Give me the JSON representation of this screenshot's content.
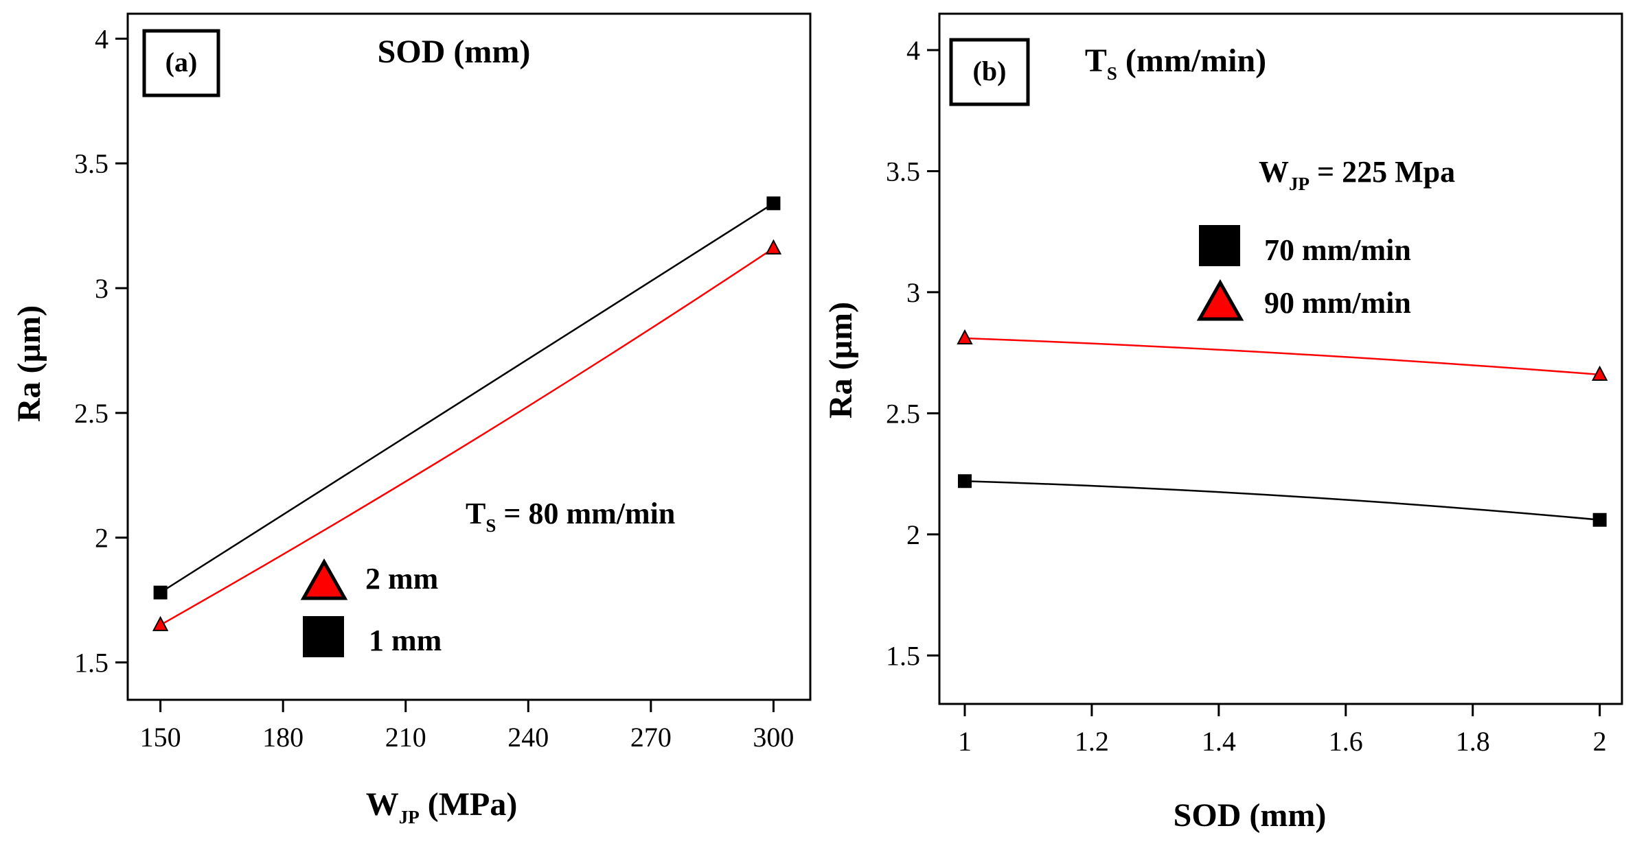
{
  "chart_data": [
    {
      "type": "line",
      "panel_label": "(a)",
      "title": "SOD (mm)",
      "xlabel": {
        "main": "W",
        "sub": "JP",
        "rest": " (MPa)"
      },
      "ylabel": "Ra (µm)",
      "xlim": [
        142,
        309
      ],
      "ylim": [
        1.35,
        4.1
      ],
      "xticks": [
        150,
        180,
        210,
        240,
        270,
        300
      ],
      "yticks": [
        1.5,
        2,
        2.5,
        3,
        3.5,
        4
      ],
      "xtick_labels": [
        "150",
        "180",
        "210",
        "240",
        "270",
        "300"
      ],
      "ytick_labels": [
        "1.5",
        "2",
        "2.5",
        "3",
        "3.5",
        "4"
      ],
      "series": [
        {
          "name": "1 mm",
          "marker": "square",
          "color": "#000000",
          "curve": 0.0,
          "x": [
            150,
            300
          ],
          "y": [
            1.78,
            3.34
          ]
        },
        {
          "name": "2 mm",
          "marker": "triangle",
          "color": "#ff0000",
          "curve": -0.018,
          "x": [
            150,
            300
          ],
          "y": [
            1.65,
            3.16
          ]
        }
      ],
      "fixed_param": {
        "main": "T",
        "sub": "S",
        "rest": " =  80 mm/min"
      },
      "legend": [
        {
          "label": "2 mm",
          "marker": "triangle"
        },
        {
          "label": "1 mm",
          "marker": "square"
        }
      ]
    },
    {
      "type": "line",
      "panel_label": "(b)",
      "title": {
        "main": "T",
        "sub": "S",
        "rest": " (mm/min)"
      },
      "xlabel": "SOD (mm)",
      "ylabel": "Ra (µm)",
      "xlim": [
        0.96,
        2.035
      ],
      "ylim": [
        1.3,
        4.15
      ],
      "xticks": [
        1,
        1.2,
        1.4,
        1.6,
        1.8,
        2
      ],
      "yticks": [
        1.5,
        2,
        2.5,
        3,
        3.5,
        4
      ],
      "xtick_labels": [
        "1",
        "1.2",
        "1.4",
        "1.6",
        "1.8",
        "2"
      ],
      "ytick_labels": [
        "1.5",
        "2",
        "2.5",
        "3",
        "3.5",
        "4"
      ],
      "series": [
        {
          "name": "70 mm/min",
          "marker": "square",
          "color": "#000000",
          "curve": 0.015,
          "x": [
            1,
            2
          ],
          "y": [
            2.22,
            2.06
          ]
        },
        {
          "name": "90 mm/min",
          "marker": "triangle",
          "color": "#ff0000",
          "curve": 0.01,
          "x": [
            1,
            2
          ],
          "y": [
            2.81,
            2.66
          ]
        }
      ],
      "fixed_param": {
        "main": "W",
        "sub": "JP",
        "rest": " =  225 Mpa"
      },
      "legend": [
        {
          "label": "70 mm/min",
          "marker": "square"
        },
        {
          "label": "90 mm/min",
          "marker": "triangle"
        }
      ]
    }
  ]
}
